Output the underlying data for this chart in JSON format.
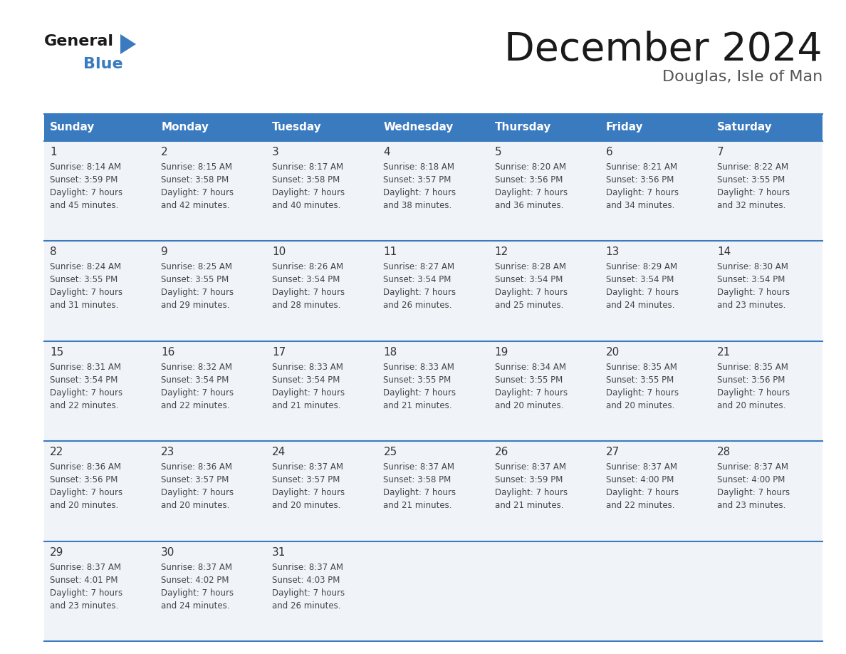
{
  "title": "December 2024",
  "subtitle": "Douglas, Isle of Man",
  "header_color": "#3a7abf",
  "header_text_color": "#ffffff",
  "cell_bg": "#f0f4f8",
  "row_line_color": "#3a7abf",
  "day_headers": [
    "Sunday",
    "Monday",
    "Tuesday",
    "Wednesday",
    "Thursday",
    "Friday",
    "Saturday"
  ],
  "weeks": [
    [
      {
        "day": 1,
        "sunrise": "8:14 AM",
        "sunset": "3:59 PM",
        "daylight": "7 hours and 45 minutes."
      },
      {
        "day": 2,
        "sunrise": "8:15 AM",
        "sunset": "3:58 PM",
        "daylight": "7 hours and 42 minutes."
      },
      {
        "day": 3,
        "sunrise": "8:17 AM",
        "sunset": "3:58 PM",
        "daylight": "7 hours and 40 minutes."
      },
      {
        "day": 4,
        "sunrise": "8:18 AM",
        "sunset": "3:57 PM",
        "daylight": "7 hours and 38 minutes."
      },
      {
        "day": 5,
        "sunrise": "8:20 AM",
        "sunset": "3:56 PM",
        "daylight": "7 hours and 36 minutes."
      },
      {
        "day": 6,
        "sunrise": "8:21 AM",
        "sunset": "3:56 PM",
        "daylight": "7 hours and 34 minutes."
      },
      {
        "day": 7,
        "sunrise": "8:22 AM",
        "sunset": "3:55 PM",
        "daylight": "7 hours and 32 minutes."
      }
    ],
    [
      {
        "day": 8,
        "sunrise": "8:24 AM",
        "sunset": "3:55 PM",
        "daylight": "7 hours and 31 minutes."
      },
      {
        "day": 9,
        "sunrise": "8:25 AM",
        "sunset": "3:55 PM",
        "daylight": "7 hours and 29 minutes."
      },
      {
        "day": 10,
        "sunrise": "8:26 AM",
        "sunset": "3:54 PM",
        "daylight": "7 hours and 28 minutes."
      },
      {
        "day": 11,
        "sunrise": "8:27 AM",
        "sunset": "3:54 PM",
        "daylight": "7 hours and 26 minutes."
      },
      {
        "day": 12,
        "sunrise": "8:28 AM",
        "sunset": "3:54 PM",
        "daylight": "7 hours and 25 minutes."
      },
      {
        "day": 13,
        "sunrise": "8:29 AM",
        "sunset": "3:54 PM",
        "daylight": "7 hours and 24 minutes."
      },
      {
        "day": 14,
        "sunrise": "8:30 AM",
        "sunset": "3:54 PM",
        "daylight": "7 hours and 23 minutes."
      }
    ],
    [
      {
        "day": 15,
        "sunrise": "8:31 AM",
        "sunset": "3:54 PM",
        "daylight": "7 hours and 22 minutes."
      },
      {
        "day": 16,
        "sunrise": "8:32 AM",
        "sunset": "3:54 PM",
        "daylight": "7 hours and 22 minutes."
      },
      {
        "day": 17,
        "sunrise": "8:33 AM",
        "sunset": "3:54 PM",
        "daylight": "7 hours and 21 minutes."
      },
      {
        "day": 18,
        "sunrise": "8:33 AM",
        "sunset": "3:55 PM",
        "daylight": "7 hours and 21 minutes."
      },
      {
        "day": 19,
        "sunrise": "8:34 AM",
        "sunset": "3:55 PM",
        "daylight": "7 hours and 20 minutes."
      },
      {
        "day": 20,
        "sunrise": "8:35 AM",
        "sunset": "3:55 PM",
        "daylight": "7 hours and 20 minutes."
      },
      {
        "day": 21,
        "sunrise": "8:35 AM",
        "sunset": "3:56 PM",
        "daylight": "7 hours and 20 minutes."
      }
    ],
    [
      {
        "day": 22,
        "sunrise": "8:36 AM",
        "sunset": "3:56 PM",
        "daylight": "7 hours and 20 minutes."
      },
      {
        "day": 23,
        "sunrise": "8:36 AM",
        "sunset": "3:57 PM",
        "daylight": "7 hours and 20 minutes."
      },
      {
        "day": 24,
        "sunrise": "8:37 AM",
        "sunset": "3:57 PM",
        "daylight": "7 hours and 20 minutes."
      },
      {
        "day": 25,
        "sunrise": "8:37 AM",
        "sunset": "3:58 PM",
        "daylight": "7 hours and 21 minutes."
      },
      {
        "day": 26,
        "sunrise": "8:37 AM",
        "sunset": "3:59 PM",
        "daylight": "7 hours and 21 minutes."
      },
      {
        "day": 27,
        "sunrise": "8:37 AM",
        "sunset": "4:00 PM",
        "daylight": "7 hours and 22 minutes."
      },
      {
        "day": 28,
        "sunrise": "8:37 AM",
        "sunset": "4:00 PM",
        "daylight": "7 hours and 23 minutes."
      }
    ],
    [
      {
        "day": 29,
        "sunrise": "8:37 AM",
        "sunset": "4:01 PM",
        "daylight": "7 hours and 23 minutes."
      },
      {
        "day": 30,
        "sunrise": "8:37 AM",
        "sunset": "4:02 PM",
        "daylight": "7 hours and 24 minutes."
      },
      {
        "day": 31,
        "sunrise": "8:37 AM",
        "sunset": "4:03 PM",
        "daylight": "7 hours and 26 minutes."
      },
      null,
      null,
      null,
      null
    ]
  ],
  "logo_text_general": "General",
  "logo_text_blue": "Blue",
  "logo_triangle_color": "#3a7abf",
  "logo_general_color": "#1a1a1a",
  "title_color": "#1a1a1a",
  "subtitle_color": "#555555",
  "day_num_color": "#333333",
  "cell_text_color": "#444444"
}
